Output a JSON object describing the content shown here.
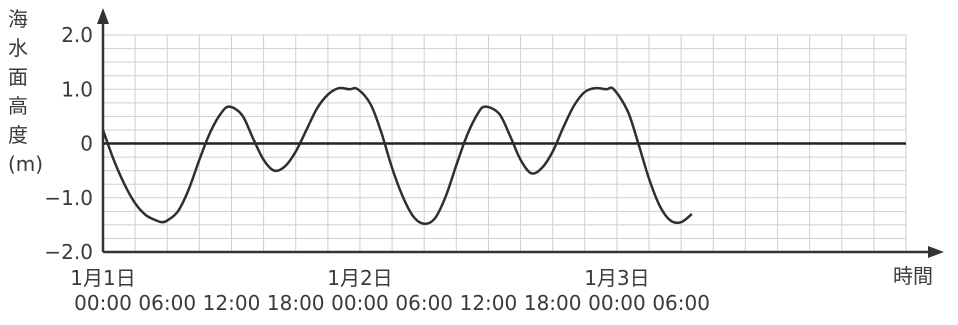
{
  "chart_data": {
    "type": "line",
    "ylabel_chars": [
      "海",
      "水",
      "面",
      "高",
      "度",
      "(m)"
    ],
    "xlabel": "時間",
    "ylim": [
      -2.0,
      2.0
    ],
    "xlim_hours": [
      0,
      75
    ],
    "y_ticks": [
      {
        "value": 2.0,
        "label": "2.0"
      },
      {
        "value": 1.0,
        "label": "1.0"
      },
      {
        "value": 0,
        "label": "0"
      },
      {
        "value": -1.0,
        "label": "−1.0"
      },
      {
        "value": -2.0,
        "label": "−2.0"
      }
    ],
    "x_ticks": [
      {
        "hour": 0,
        "date": "1月1日",
        "time": "00:00"
      },
      {
        "hour": 6,
        "date": "",
        "time": "06:00"
      },
      {
        "hour": 12,
        "date": "",
        "time": "12:00"
      },
      {
        "hour": 18,
        "date": "",
        "time": "18:00"
      },
      {
        "hour": 24,
        "date": "1月2日",
        "time": "00:00"
      },
      {
        "hour": 30,
        "date": "",
        "time": "06:00"
      },
      {
        "hour": 36,
        "date": "",
        "time": "12:00"
      },
      {
        "hour": 42,
        "date": "",
        "time": "18:00"
      },
      {
        "hour": 48,
        "date": "1月3日",
        "time": "00:00"
      },
      {
        "hour": 54,
        "date": "",
        "time": "06:00"
      }
    ],
    "grid": true,
    "series": [
      {
        "x": [
          0,
          1,
          2,
          3,
          4,
          5,
          5.5,
          6,
          7,
          8,
          9,
          10,
          11,
          11.8,
          13,
          14,
          15,
          16,
          17,
          18,
          19,
          20,
          21,
          22,
          23,
          23.8,
          25,
          26,
          27,
          28,
          29,
          30,
          31,
          32,
          33,
          34,
          35,
          35.7,
          37,
          38,
          39,
          40,
          41,
          42,
          43,
          44,
          45,
          46,
          47,
          47.7,
          49,
          50,
          51,
          52,
          53,
          54,
          55
        ],
        "y": [
          0.25,
          -0.3,
          -0.75,
          -1.1,
          -1.32,
          -1.42,
          -1.45,
          -1.42,
          -1.25,
          -0.85,
          -0.3,
          0.2,
          0.55,
          0.68,
          0.52,
          0.1,
          -0.3,
          -0.5,
          -0.42,
          -0.15,
          0.25,
          0.65,
          0.9,
          1.02,
          1.0,
          1.0,
          0.72,
          0.2,
          -0.45,
          -0.98,
          -1.35,
          -1.48,
          -1.38,
          -0.98,
          -0.4,
          0.15,
          0.55,
          0.68,
          0.55,
          0.15,
          -0.3,
          -0.55,
          -0.45,
          -0.15,
          0.3,
          0.7,
          0.95,
          1.02,
          1.0,
          1.0,
          0.6,
          0.0,
          -0.65,
          -1.15,
          -1.42,
          -1.45,
          -1.3
        ]
      }
    ]
  }
}
